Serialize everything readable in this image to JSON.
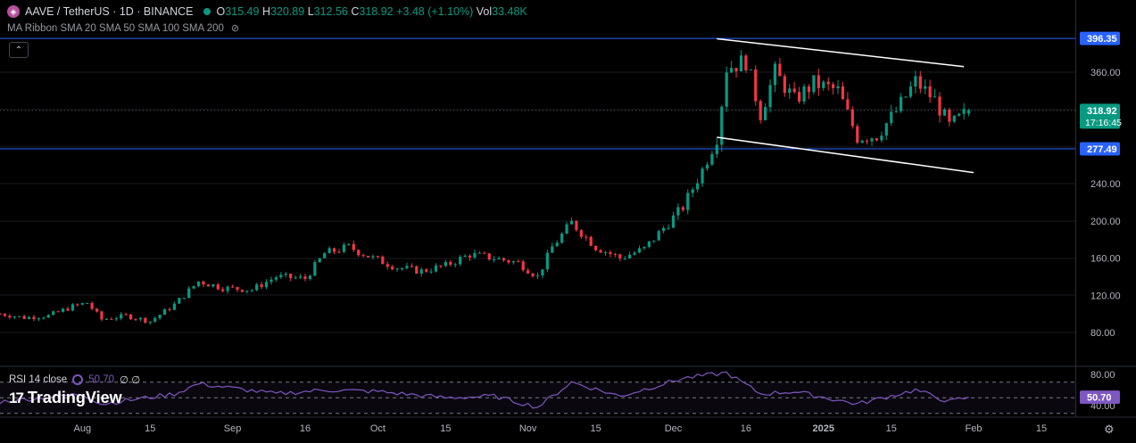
{
  "header": {
    "symbol": "AAVE / TetherUS · 1D · BINANCE",
    "o_label": "O",
    "o_value": "315.49",
    "h_label": "H",
    "h_value": "320.89",
    "l_label": "L",
    "l_value": "312.56",
    "c_label": "C",
    "c_value": "318.92",
    "change": "+3.48 (+1.10%)",
    "vol_label": "Vol",
    "vol_value": "33.48K"
  },
  "indicator": {
    "ma_ribbon": "MA Ribbon SMA 20 SMA 50 SMA 100 SMA 200",
    "eye_icon": "eye-crossed-icon"
  },
  "rsi": {
    "label": "RSI 14 close",
    "value": "50.70",
    "extra": "∅ ∅"
  },
  "brand": {
    "name": "TradingView",
    "logo_icon": "tradingview-logo-icon"
  },
  "colors": {
    "up": "#089981",
    "down": "#f23645",
    "level_line": "#2962ff",
    "rsi_line": "#7e57c2",
    "channel": "#ffffff"
  },
  "price_scale": {
    "ticks": [
      "360.00",
      "240.00",
      "200.00",
      "160.00",
      "120.00",
      "80.00"
    ],
    "labels": {
      "resistance": "396.35",
      "current": "318.92",
      "countdown": "17:16:45",
      "support": "277.49"
    }
  },
  "rsi_scale": {
    "ticks": [
      "80.00",
      "40.00"
    ],
    "current": "50.70"
  },
  "time_axis": [
    "Aug",
    "15",
    "Sep",
    "16",
    "Oct",
    "15",
    "Nov",
    "15",
    "Dec",
    "16",
    "2025",
    "15",
    "Feb",
    "15"
  ],
  "chart_data": {
    "type": "candlestick",
    "title": "AAVE / TetherUS · 1D · BINANCE",
    "ylim": [
      60,
      400
    ],
    "x_range": [
      "2024-07-15",
      "2025-02-22"
    ],
    "horizontal_levels": [
      396.35,
      277.49
    ],
    "channel": {
      "upper": [
        [
          "2024-12-10",
          396
        ],
        [
          "2025-01-30",
          366
        ]
      ],
      "lower": [
        [
          "2024-12-10",
          290
        ],
        [
          "2025-02-01",
          252
        ]
      ]
    },
    "last": {
      "date": "2025-01-31",
      "open": 315.49,
      "high": 320.89,
      "low": 312.56,
      "close": 318.92
    },
    "daily_closes": [
      [
        "2024-07-15",
        100
      ],
      [
        "2024-07-20",
        96
      ],
      [
        "2024-07-25",
        98
      ],
      [
        "2024-07-30",
        108
      ],
      [
        "2024-08-02",
        112
      ],
      [
        "2024-08-05",
        94
      ],
      [
        "2024-08-10",
        98
      ],
      [
        "2024-08-15",
        92
      ],
      [
        "2024-08-20",
        110
      ],
      [
        "2024-08-25",
        135
      ],
      [
        "2024-08-30",
        128
      ],
      [
        "2024-09-05",
        126
      ],
      [
        "2024-09-10",
        140
      ],
      [
        "2024-09-16",
        138
      ],
      [
        "2024-09-20",
        165
      ],
      [
        "2024-09-25",
        172
      ],
      [
        "2024-09-30",
        160
      ],
      [
        "2024-10-05",
        150
      ],
      [
        "2024-10-10",
        146
      ],
      [
        "2024-10-15",
        152
      ],
      [
        "2024-10-20",
        164
      ],
      [
        "2024-10-25",
        160
      ],
      [
        "2024-10-30",
        155
      ],
      [
        "2024-11-03",
        140
      ],
      [
        "2024-11-06",
        172
      ],
      [
        "2024-11-10",
        198
      ],
      [
        "2024-11-15",
        172
      ],
      [
        "2024-11-20",
        160
      ],
      [
        "2024-11-25",
        170
      ],
      [
        "2024-11-30",
        198
      ],
      [
        "2024-12-03",
        215
      ],
      [
        "2024-12-07",
        255
      ],
      [
        "2024-12-10",
        290
      ],
      [
        "2024-12-12",
        365
      ],
      [
        "2024-12-16",
        372
      ],
      [
        "2024-12-19",
        315
      ],
      [
        "2024-12-22",
        360
      ],
      [
        "2024-12-26",
        330
      ],
      [
        "2024-12-30",
        348
      ],
      [
        "2025-01-04",
        340
      ],
      [
        "2025-01-08",
        290
      ],
      [
        "2025-01-12",
        292
      ],
      [
        "2025-01-16",
        318
      ],
      [
        "2025-01-20",
        350
      ],
      [
        "2025-01-24",
        330
      ],
      [
        "2025-01-27",
        302
      ],
      [
        "2025-01-29",
        310
      ],
      [
        "2025-01-31",
        318.92
      ]
    ],
    "rsi": {
      "ylim": [
        20,
        90
      ],
      "values": [
        [
          "2024-07-15",
          45
        ],
        [
          "2024-08-01",
          55
        ],
        [
          "2024-08-05",
          42
        ],
        [
          "2024-08-20",
          55
        ],
        [
          "2024-08-25",
          68
        ],
        [
          "2024-09-10",
          55
        ],
        [
          "2024-09-20",
          60
        ],
        [
          "2024-10-01",
          58
        ],
        [
          "2024-10-15",
          50
        ],
        [
          "2024-10-25",
          52
        ],
        [
          "2024-11-03",
          38
        ],
        [
          "2024-11-10",
          70
        ],
        [
          "2024-11-20",
          52
        ],
        [
          "2024-12-03",
          75
        ],
        [
          "2024-12-12",
          82
        ],
        [
          "2024-12-19",
          55
        ],
        [
          "2024-12-26",
          58
        ],
        [
          "2025-01-08",
          42
        ],
        [
          "2025-01-20",
          60
        ],
        [
          "2025-01-27",
          45
        ],
        [
          "2025-01-31",
          50.7
        ]
      ]
    }
  }
}
